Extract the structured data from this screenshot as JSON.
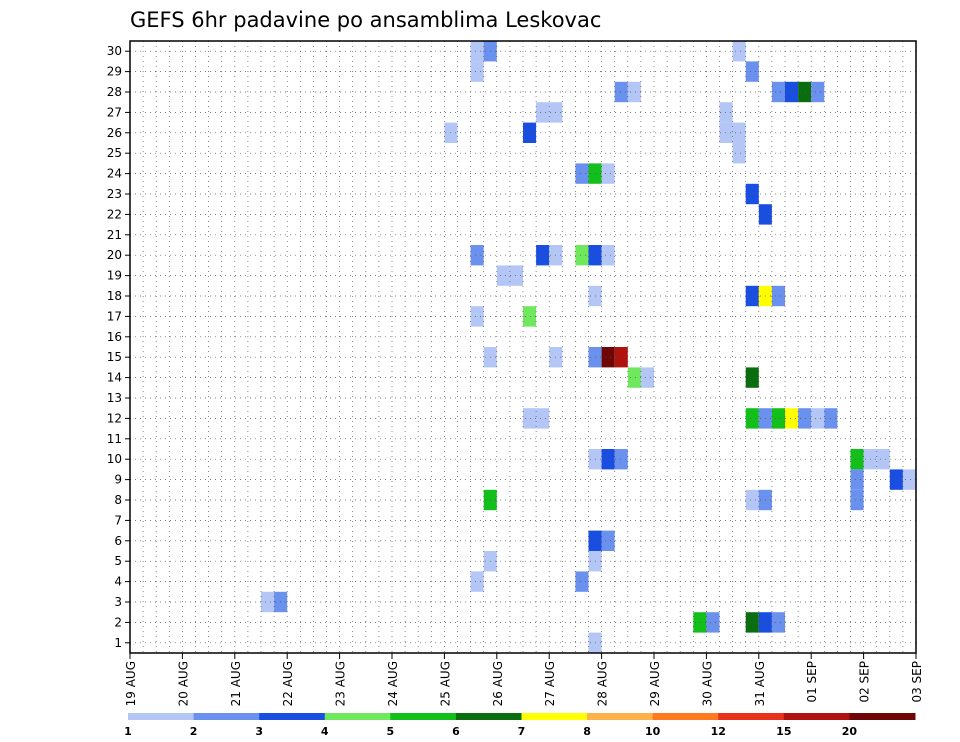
{
  "chart_data": {
    "type": "heatmap",
    "title": "GEFS 6hr padavine po ansamblima Leskovac",
    "xlabel": "",
    "ylabel": "",
    "x_ticks": [
      "19 AUG",
      "20 AUG",
      "21 AUG",
      "22 AUG",
      "23 AUG",
      "24 AUG",
      "25 AUG",
      "26 AUG",
      "27 AUG",
      "28 AUG",
      "29 AUG",
      "30 AUG",
      "31 AUG",
      "01 SEP",
      "02 SEP",
      "03 SEP"
    ],
    "y_ticks": [
      "1",
      "2",
      "3",
      "4",
      "5",
      "6",
      "7",
      "8",
      "9",
      "10",
      "11",
      "12",
      "13",
      "14",
      "15",
      "16",
      "17",
      "18",
      "19",
      "20",
      "21",
      "22",
      "23",
      "24",
      "25",
      "26",
      "27",
      "28",
      "29",
      "30"
    ],
    "x_range_steps": [
      0,
      60
    ],
    "step_hours": 6,
    "grid": true,
    "legend": {
      "placement": "bottom",
      "levels": [
        "1",
        "2",
        "3",
        "4",
        "5",
        "6",
        "7",
        "8",
        "10",
        "12",
        "15",
        "20"
      ],
      "colors": [
        "#b3c6f5",
        "#6b91ee",
        "#1a4ee0",
        "#6fe85e",
        "#13bf1a",
        "#0a6e10",
        "#ffff00",
        "#ffb24a",
        "#ff7a1f",
        "#e8331c",
        "#b0120e",
        "#6e0606"
      ]
    },
    "cells": [
      {
        "member": 30,
        "step": 27,
        "v": 1
      },
      {
        "member": 30,
        "step": 28,
        "v": 2
      },
      {
        "member": 30,
        "step": 47,
        "v": 1
      },
      {
        "member": 29,
        "step": 27,
        "v": 1
      },
      {
        "member": 29,
        "step": 48,
        "v": 2
      },
      {
        "member": 28,
        "step": 38,
        "v": 2
      },
      {
        "member": 28,
        "step": 39,
        "v": 1
      },
      {
        "member": 28,
        "step": 50,
        "v": 2
      },
      {
        "member": 28,
        "step": 51,
        "v": 3
      },
      {
        "member": 28,
        "step": 52,
        "v": 6
      },
      {
        "member": 28,
        "step": 53,
        "v": 2
      },
      {
        "member": 27,
        "step": 32,
        "v": 1
      },
      {
        "member": 27,
        "step": 33,
        "v": 1
      },
      {
        "member": 27,
        "step": 46,
        "v": 1
      },
      {
        "member": 26,
        "step": 25,
        "v": 1
      },
      {
        "member": 26,
        "step": 31,
        "v": 3
      },
      {
        "member": 26,
        "step": 46,
        "v": 1
      },
      {
        "member": 26,
        "step": 47,
        "v": 1
      },
      {
        "member": 25,
        "step": 47,
        "v": 1
      },
      {
        "member": 24,
        "step": 35,
        "v": 2
      },
      {
        "member": 24,
        "step": 36,
        "v": 5
      },
      {
        "member": 24,
        "step": 37,
        "v": 1
      },
      {
        "member": 23,
        "step": 48,
        "v": 3
      },
      {
        "member": 22,
        "step": 49,
        "v": 3
      },
      {
        "member": 20,
        "step": 27,
        "v": 2
      },
      {
        "member": 20,
        "step": 32,
        "v": 3
      },
      {
        "member": 20,
        "step": 33,
        "v": 1
      },
      {
        "member": 20,
        "step": 35,
        "v": 4
      },
      {
        "member": 20,
        "step": 36,
        "v": 3
      },
      {
        "member": 20,
        "step": 37,
        "v": 1
      },
      {
        "member": 19,
        "step": 29,
        "v": 1
      },
      {
        "member": 19,
        "step": 30,
        "v": 1
      },
      {
        "member": 18,
        "step": 36,
        "v": 1
      },
      {
        "member": 18,
        "step": 48,
        "v": 3
      },
      {
        "member": 18,
        "step": 49,
        "v": 7
      },
      {
        "member": 18,
        "step": 50,
        "v": 2
      },
      {
        "member": 17,
        "step": 27,
        "v": 1
      },
      {
        "member": 17,
        "step": 31,
        "v": 4
      },
      {
        "member": 15,
        "step": 28,
        "v": 1
      },
      {
        "member": 15,
        "step": 33,
        "v": 1
      },
      {
        "member": 15,
        "step": 36,
        "v": 2
      },
      {
        "member": 15,
        "step": 37,
        "v": 20
      },
      {
        "member": 15,
        "step": 38,
        "v": 15
      },
      {
        "member": 14,
        "step": 39,
        "v": 4
      },
      {
        "member": 14,
        "step": 40,
        "v": 1
      },
      {
        "member": 14,
        "step": 48,
        "v": 6
      },
      {
        "member": 12,
        "step": 31,
        "v": 1
      },
      {
        "member": 12,
        "step": 32,
        "v": 1
      },
      {
        "member": 12,
        "step": 48,
        "v": 5
      },
      {
        "member": 12,
        "step": 49,
        "v": 2
      },
      {
        "member": 12,
        "step": 50,
        "v": 5
      },
      {
        "member": 12,
        "step": 51,
        "v": 7
      },
      {
        "member": 12,
        "step": 52,
        "v": 2
      },
      {
        "member": 12,
        "step": 53,
        "v": 1
      },
      {
        "member": 12,
        "step": 54,
        "v": 2
      },
      {
        "member": 10,
        "step": 36,
        "v": 1
      },
      {
        "member": 10,
        "step": 37,
        "v": 3
      },
      {
        "member": 10,
        "step": 38,
        "v": 2
      },
      {
        "member": 10,
        "step": 56,
        "v": 5
      },
      {
        "member": 10,
        "step": 57,
        "v": 1
      },
      {
        "member": 10,
        "step": 58,
        "v": 1
      },
      {
        "member": 9,
        "step": 56,
        "v": 2
      },
      {
        "member": 9,
        "step": 59,
        "v": 3
      },
      {
        "member": 9,
        "step": 60,
        "v": 1
      },
      {
        "member": 8,
        "step": 28,
        "v": 5
      },
      {
        "member": 8,
        "step": 48,
        "v": 1
      },
      {
        "member": 8,
        "step": 49,
        "v": 2
      },
      {
        "member": 8,
        "step": 56,
        "v": 2
      },
      {
        "member": 6,
        "step": 36,
        "v": 3
      },
      {
        "member": 6,
        "step": 37,
        "v": 2
      },
      {
        "member": 5,
        "step": 28,
        "v": 1
      },
      {
        "member": 5,
        "step": 36,
        "v": 1
      },
      {
        "member": 4,
        "step": 27,
        "v": 1
      },
      {
        "member": 4,
        "step": 35,
        "v": 2
      },
      {
        "member": 3,
        "step": 11,
        "v": 1
      },
      {
        "member": 3,
        "step": 12,
        "v": 2
      },
      {
        "member": 2,
        "step": 44,
        "v": 5
      },
      {
        "member": 2,
        "step": 45,
        "v": 2
      },
      {
        "member": 2,
        "step": 48,
        "v": 6
      },
      {
        "member": 2,
        "step": 49,
        "v": 3
      },
      {
        "member": 2,
        "step": 50,
        "v": 2
      },
      {
        "member": 1,
        "step": 36,
        "v": 1
      }
    ]
  }
}
